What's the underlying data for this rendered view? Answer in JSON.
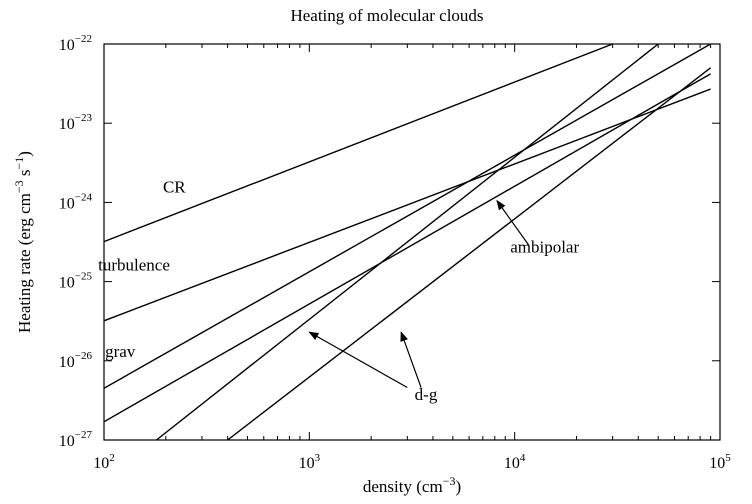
{
  "chart_data": {
    "type": "line",
    "title": "Heating of molecular clouds",
    "xlabel": {
      "base": "density (cm",
      "exp": "−3",
      "tail": ")"
    },
    "ylabel": {
      "p1": "Heating rate (erg cm",
      "e1": "−3",
      "p2": " s",
      "e2": "−1",
      "p3": ")"
    },
    "xscale": "log",
    "yscale": "log",
    "xlim": [
      100,
      100000
    ],
    "ylim": [
      1e-27,
      1e-22
    ],
    "grid": false,
    "x_ticks": [
      {
        "x": 100,
        "base": "10",
        "exp": "2"
      },
      {
        "x": 1000,
        "base": "10",
        "exp": "3"
      },
      {
        "x": 10000,
        "base": "10",
        "exp": "4"
      },
      {
        "x": 100000,
        "base": "10",
        "exp": "5"
      }
    ],
    "y_ticks": [
      {
        "y": 1e-22,
        "base": "10",
        "exp": "−22"
      },
      {
        "y": 1e-23,
        "base": "10",
        "exp": "−23"
      },
      {
        "y": 1e-24,
        "base": "10",
        "exp": "−24"
      },
      {
        "y": 1e-25,
        "base": "10",
        "exp": "−25"
      },
      {
        "y": 1e-26,
        "base": "10",
        "exp": "−26"
      },
      {
        "y": 1e-27,
        "base": "10",
        "exp": "−27"
      }
    ],
    "series": [
      {
        "name": "CR",
        "x": [
          100,
          30000
        ],
        "y": [
          3.2e-25,
          1e-22
        ]
      },
      {
        "name": "turbulence",
        "x": [
          100,
          90000
        ],
        "y": [
          3.2e-26,
          2.7e-23
        ]
      },
      {
        "name": "grav",
        "x": [
          100,
          90000
        ],
        "y": [
          4.5e-27,
          1e-22
        ]
      },
      {
        "name": "",
        "x": [
          100,
          90000
        ],
        "y": [
          1.7e-27,
          4.2e-23
        ]
      },
      {
        "name": "",
        "x": [
          180,
          50000
        ],
        "y": [
          1e-27,
          1e-22
        ]
      },
      {
        "name": "",
        "x": [
          400,
          90000
        ],
        "y": [
          1e-27,
          5e-23
        ]
      }
    ],
    "labels": [
      {
        "id": "cr",
        "text": "CR",
        "x": 220,
        "y": 1.5e-24
      },
      {
        "id": "turbulence",
        "text": "turbulence",
        "x": 140,
        "y": 1.55e-25
      },
      {
        "id": "grav",
        "text": "grav",
        "x": 120,
        "y": 1.25e-26
      },
      {
        "id": "ambipolar",
        "text": "ambipolar",
        "x": 14000,
        "y": 2.6e-25
      },
      {
        "id": "dg",
        "text": "d-g",
        "x": 3700,
        "y": 3.6e-27
      }
    ],
    "annotations": [
      {
        "id": "ambipolar-arrow",
        "label": "ambipolar",
        "from": [
          11700,
          2.9e-25
        ],
        "to": [
          8200,
          1.05e-24
        ]
      },
      {
        "id": "dg-arrow-left",
        "label": "d-g",
        "from": [
          3000,
          4.6e-27
        ],
        "to": [
          1000,
          2.3e-26
        ]
      },
      {
        "id": "dg-arrow-right",
        "label": "d-g",
        "from": [
          3500,
          4.6e-27
        ],
        "to": [
          2800,
          2.3e-26
        ]
      }
    ]
  }
}
